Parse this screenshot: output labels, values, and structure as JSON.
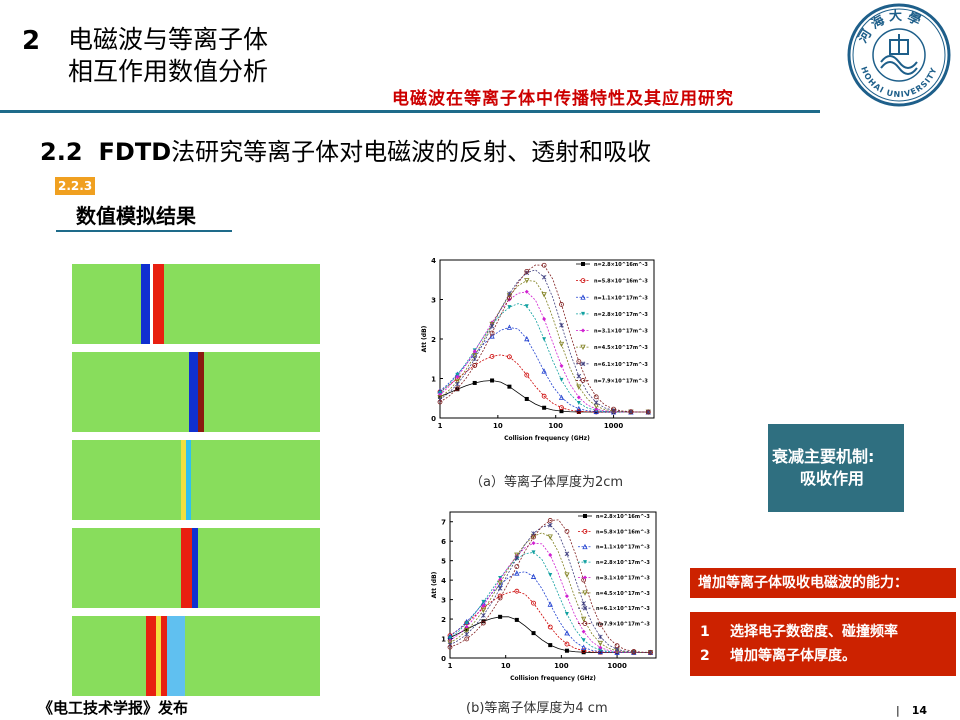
{
  "header": {
    "section_number": "2",
    "section_title_line1": "电磁波与等离子体",
    "section_title_line2": "相互作用数值分析",
    "subtitle": "电磁波在等离子体中传播特性及其应用研究",
    "logo_text_cn": "河海大學",
    "logo_text_en": "HOHAI UNIVERSITY"
  },
  "heading2": {
    "number": "2.2",
    "prefix": "FDTD",
    "text": "法研究等离子体对电磁波的反射、透射和吸收"
  },
  "badge": "2.2.3",
  "heading3": "数值模拟结果",
  "colors": {
    "accent": "#1e6b8a",
    "field_bg": "#88dd5c",
    "red_box": "#cc2200",
    "mech_box": "#2f6f80",
    "badge": "#f0a020"
  },
  "panels": [
    {
      "label": "snapshot-1",
      "pos": 0.28
    },
    {
      "label": "snapshot-2",
      "pos": 0.47
    },
    {
      "label": "snapshot-3",
      "pos": 0.44
    },
    {
      "label": "snapshot-4",
      "pos": 0.44
    },
    {
      "label": "snapshot-5",
      "pos": 0.3
    }
  ],
  "chart_data": [
    {
      "type": "line",
      "xscale": "log",
      "xlim": [
        1,
        5000
      ],
      "ylim": [
        0,
        4
      ],
      "xlabel": "Collision frequency (GHz)",
      "ylabel": "Att (dB)",
      "x_ticks": [
        "1",
        "10",
        "100",
        "1000"
      ],
      "y_ticks": [
        "0",
        "1",
        "2",
        "3",
        "4"
      ],
      "legend_placement": "top-right",
      "legend": [
        "n=2.8×10^16m^-3",
        "n=5.8×10^16m^-3",
        "n=1.1×10^17m^-3",
        "n=2.8×10^17m^-3",
        "n=3.1×10^17m^-3",
        "n=4.5×10^17m^-3",
        "n=6.1×10^17m^-3",
        "n=7.9×10^17m^-3"
      ],
      "series": [
        {
          "peak_x": 8,
          "peak_y": 0.95
        },
        {
          "peak_x": 12,
          "peak_y": 1.6
        },
        {
          "peak_x": 18,
          "peak_y": 2.3
        },
        {
          "peak_x": 25,
          "peak_y": 2.9
        },
        {
          "peak_x": 30,
          "peak_y": 3.2
        },
        {
          "peak_x": 38,
          "peak_y": 3.5
        },
        {
          "peak_x": 45,
          "peak_y": 3.75
        },
        {
          "peak_x": 55,
          "peak_y": 3.9
        }
      ],
      "caption": "（a）等离子体厚度为2cm"
    },
    {
      "type": "line",
      "xscale": "log",
      "xlim": [
        1,
        5000
      ],
      "ylim": [
        0,
        7.5
      ],
      "xlabel": "Collision frequency (GHz)",
      "ylabel": "Att (dB)",
      "x_ticks": [
        "1",
        "10",
        "100",
        "1000"
      ],
      "y_ticks": [
        "0",
        "1",
        "2",
        "3",
        "4",
        "5",
        "6",
        "7"
      ],
      "legend_placement": "top-right",
      "legend": [
        "n=2.8×10^16m^-3",
        "n=5.8×10^16m^-3",
        "n=1.1×10^17m^-3",
        "n=2.8×10^17m^-3",
        "n=3.1×10^17m^-3",
        "n=4.5×10^17m^-3",
        "n=6.1×10^17m^-3",
        "n=7.9×10^17m^-3"
      ],
      "series": [
        {
          "peak_x": 10,
          "peak_y": 2.0
        },
        {
          "peak_x": 16,
          "peak_y": 3.3
        },
        {
          "peak_x": 22,
          "peak_y": 4.3
        },
        {
          "peak_x": 30,
          "peak_y": 5.3
        },
        {
          "peak_x": 38,
          "peak_y": 5.8
        },
        {
          "peak_x": 48,
          "peak_y": 6.3
        },
        {
          "peak_x": 60,
          "peak_y": 6.7
        },
        {
          "peak_x": 80,
          "peak_y": 7.0
        }
      ],
      "caption": "(b)等离子体厚度为4 cm"
    }
  ],
  "mechanism": {
    "line1": "衰减主要机制:",
    "line2": "吸收作用"
  },
  "ability": {
    "title": "增加等离子体吸收电磁波的能力：",
    "items": [
      {
        "num": "1",
        "text": "选择电子数密度、碰撞频率"
      },
      {
        "num": "2",
        "text": "增加等离子体厚度。"
      }
    ]
  },
  "footer": {
    "source": "《电工技术学报》发布",
    "page": "14",
    "separator": "|"
  }
}
